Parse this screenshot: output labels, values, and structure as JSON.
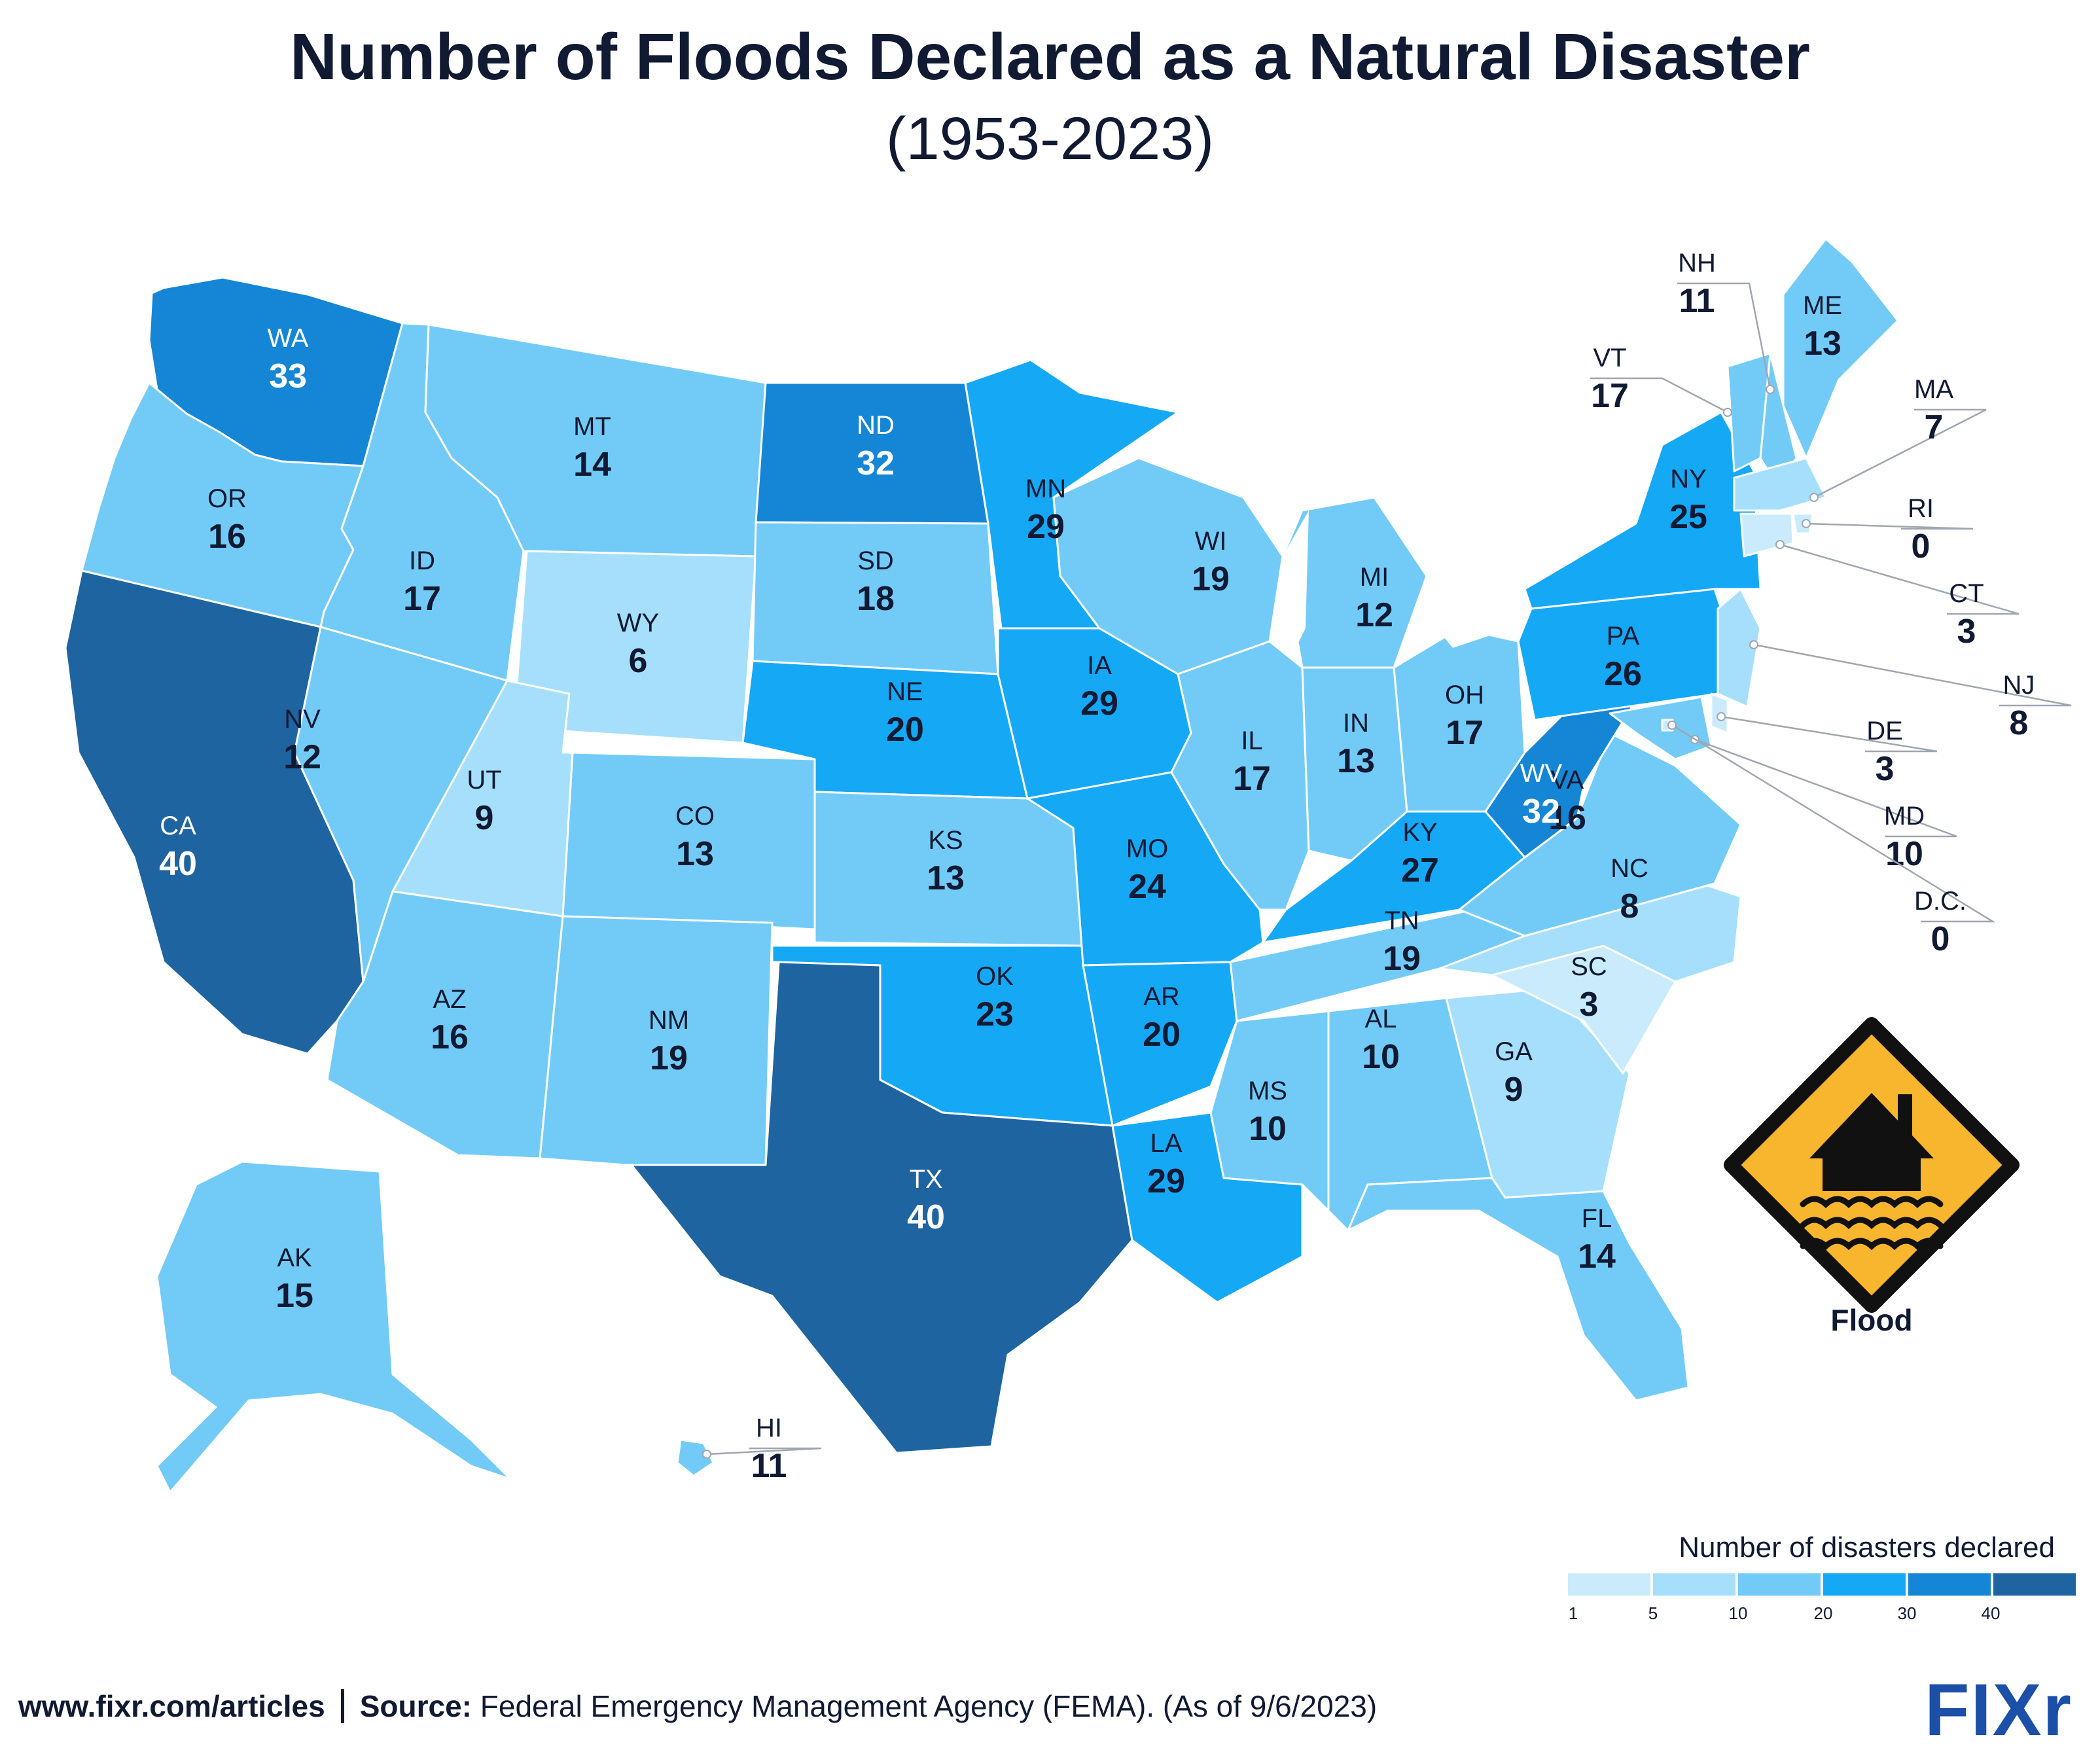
{
  "header": {
    "title": "Number of Floods Declared as a Natural Disaster",
    "subtitle": "(1953-2023)"
  },
  "palette": {
    "c1": "#c9ebfc",
    "c5": "#a6dffb",
    "c10": "#72cbf7",
    "c20": "#15a8f5",
    "c30": "#1586d6",
    "c40": "#1e64a0",
    "border": "#ffffff",
    "leader": "#a0a6b0",
    "dark_text": "#111a33",
    "light_text": "#ffffff",
    "icon_fill": "#f8b52e",
    "icon_outline": "#111111"
  },
  "states": [
    {
      "abbr": "WA",
      "value": "33"
    },
    {
      "abbr": "OR",
      "value": "16"
    },
    {
      "abbr": "CA",
      "value": "40"
    },
    {
      "abbr": "ID",
      "value": "17"
    },
    {
      "abbr": "NV",
      "value": "12"
    },
    {
      "abbr": "MT",
      "value": "14"
    },
    {
      "abbr": "WY",
      "value": "6"
    },
    {
      "abbr": "UT",
      "value": "9"
    },
    {
      "abbr": "AZ",
      "value": "16"
    },
    {
      "abbr": "CO",
      "value": "13"
    },
    {
      "abbr": "NM",
      "value": "19"
    },
    {
      "abbr": "ND",
      "value": "32"
    },
    {
      "abbr": "SD",
      "value": "18"
    },
    {
      "abbr": "NE",
      "value": "20"
    },
    {
      "abbr": "KS",
      "value": "13"
    },
    {
      "abbr": "OK",
      "value": "23"
    },
    {
      "abbr": "TX",
      "value": "40"
    },
    {
      "abbr": "MN",
      "value": "29"
    },
    {
      "abbr": "IA",
      "value": "29"
    },
    {
      "abbr": "MO",
      "value": "24"
    },
    {
      "abbr": "AR",
      "value": "20"
    },
    {
      "abbr": "LA",
      "value": "29"
    },
    {
      "abbr": "WI",
      "value": "19"
    },
    {
      "abbr": "IL",
      "value": "17"
    },
    {
      "abbr": "MI",
      "value": "12"
    },
    {
      "abbr": "IN",
      "value": "13"
    },
    {
      "abbr": "OH",
      "value": "17"
    },
    {
      "abbr": "KY",
      "value": "27"
    },
    {
      "abbr": "TN",
      "value": "19"
    },
    {
      "abbr": "MS",
      "value": "10"
    },
    {
      "abbr": "AL",
      "value": "10"
    },
    {
      "abbr": "GA",
      "value": "9"
    },
    {
      "abbr": "FL",
      "value": "14"
    },
    {
      "abbr": "SC",
      "value": "3"
    },
    {
      "abbr": "NC",
      "value": "8"
    },
    {
      "abbr": "VA",
      "value": "16"
    },
    {
      "abbr": "WV",
      "value": "32"
    },
    {
      "abbr": "PA",
      "value": "26"
    },
    {
      "abbr": "NY",
      "value": "25"
    },
    {
      "abbr": "ME",
      "value": "13"
    },
    {
      "abbr": "AK",
      "value": "15"
    },
    {
      "abbr": "HI",
      "value": "11"
    },
    {
      "abbr": "NH",
      "value": "11"
    },
    {
      "abbr": "VT",
      "value": "17"
    },
    {
      "abbr": "MA",
      "value": "7"
    },
    {
      "abbr": "RI",
      "value": "0"
    },
    {
      "abbr": "CT",
      "value": "3"
    },
    {
      "abbr": "NJ",
      "value": "8"
    },
    {
      "abbr": "DE",
      "value": "3"
    },
    {
      "abbr": "MD",
      "value": "10"
    },
    {
      "abbr": "D.C.",
      "value": "0"
    }
  ],
  "legend": {
    "title": "Number of disasters declared",
    "ticks": [
      "1",
      "5",
      "10",
      "20",
      "30",
      "40"
    ]
  },
  "icon": {
    "name": "flood-warning-icon",
    "label": "Flood"
  },
  "footer": {
    "url": "www.fixr.com/articles",
    "source_label": "Source:",
    "source_text": "Federal Emergency Management Agency (FEMA). (As of 9/6/2023)"
  },
  "logo": {
    "text": "FIXr"
  }
}
